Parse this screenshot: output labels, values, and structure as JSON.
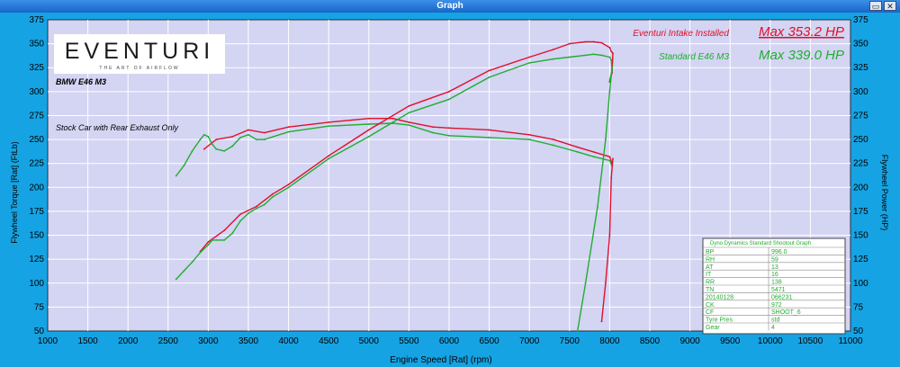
{
  "window": {
    "title": "Graph",
    "restore_icon": "restore-window-icon",
    "close_icon": "close-window-icon",
    "restore_glyph": "▭",
    "close_glyph": "✕"
  },
  "chart_data": {
    "type": "line",
    "xlabel": "Engine Speed [Rat] (rpm)",
    "ylabel_left": "Flywheel Torque [Rat] (FtLb)",
    "ylabel_right": "Flywheel Power (HP)",
    "xlim": [
      1000,
      11000
    ],
    "ylim": [
      50,
      375
    ],
    "x_ticks": [
      "1000",
      "1500",
      "2000",
      "2500",
      "3000",
      "3500",
      "4000",
      "4500",
      "5000",
      "5500",
      "6000",
      "6500",
      "7000",
      "7500",
      "8000",
      "8500",
      "9000",
      "9500",
      "10000",
      "10500",
      "11000"
    ],
    "y_ticks": [
      "50",
      "75",
      "100",
      "125",
      "150",
      "175",
      "200",
      "225",
      "250",
      "275",
      "300",
      "325",
      "350",
      "375"
    ],
    "grid": true,
    "plot_background": "#d4d4f3",
    "logo": {
      "text": "EVENTURI",
      "tagline": "THE ART OF AIRFLOW"
    },
    "annotations": [
      "BMW E46 M3",
      "Stock Car with Rear Exhaust Only"
    ],
    "legend": [
      {
        "label": "Eventuri Intake Installed",
        "max": "Max 353.2 HP",
        "color": "#e0102a"
      },
      {
        "label": "Standard E46 M3",
        "max": "Max 339.0 HP",
        "color": "#1fae2f"
      }
    ],
    "info_table": {
      "header": "Dyno Dynamics Standard Shootout Graph",
      "rows": [
        [
          "BP",
          "996.0"
        ],
        [
          "RH",
          "59"
        ],
        [
          "AT",
          "13"
        ],
        [
          "IT",
          "16"
        ],
        [
          "RR",
          "138"
        ],
        [
          "TN",
          "5471"
        ],
        [
          "20140128",
          "066231"
        ],
        [
          "CK",
          "972"
        ],
        [
          "CF",
          "SHOOT_6"
        ],
        [
          "Tyre Pres",
          "std"
        ],
        [
          "Gear",
          "4"
        ]
      ]
    },
    "series": [
      {
        "name": "Eventuri Intake Installed",
        "kind": "torque",
        "color": "#e0102a",
        "x": [
          2950,
          3100,
          3300,
          3500,
          3700,
          4000,
          4500,
          5000,
          5300,
          5500,
          5800,
          6000,
          6500,
          7000,
          7300,
          7600,
          7800,
          8000,
          8030
        ],
        "y": [
          240,
          250,
          253,
          260,
          257,
          263,
          268,
          272,
          272,
          268,
          263,
          262,
          260,
          255,
          250,
          242,
          237,
          232,
          225
        ]
      },
      {
        "name": "Standard E46 M3",
        "kind": "torque",
        "color": "#1fae2f",
        "x": [
          2600,
          2700,
          2800,
          2900,
          2950,
          3000,
          3050,
          3100,
          3200,
          3300,
          3400,
          3500,
          3600,
          3700,
          4000,
          4500,
          5000,
          5300,
          5500,
          5800,
          6000,
          6500,
          7000,
          7300,
          7600,
          7800,
          8000,
          8030
        ],
        "y": [
          212,
          223,
          238,
          250,
          255,
          253,
          245,
          240,
          238,
          243,
          252,
          255,
          250,
          250,
          258,
          264,
          266,
          267,
          265,
          257,
          254,
          252,
          250,
          244,
          237,
          232,
          228,
          222
        ]
      },
      {
        "name": "Eventuri Intake Installed",
        "kind": "power",
        "color": "#e0102a",
        "x": [
          2900,
          3000,
          3200,
          3400,
          3600,
          3800,
          4000,
          4500,
          5000,
          5500,
          6000,
          6500,
          7000,
          7300,
          7500,
          7700,
          7800,
          7900,
          8000,
          8020,
          8040,
          8030,
          8000
        ],
        "y": [
          133,
          143,
          155,
          172,
          180,
          193,
          203,
          233,
          260,
          285,
          300,
          322,
          336,
          344,
          350,
          352,
          352,
          351,
          346,
          342,
          340,
          320,
          310
        ]
      },
      {
        "name": "Standard E46 M3",
        "kind": "power",
        "color": "#1fae2f",
        "x": [
          2600,
          2700,
          2800,
          2900,
          3000,
          3050,
          3100,
          3200,
          3300,
          3400,
          3500,
          3600,
          3700,
          3800,
          4000,
          4500,
          5000,
          5300,
          5500,
          6000,
          6500,
          7000,
          7300,
          7500,
          7700,
          7800,
          7900,
          8000,
          8020,
          8030,
          8000
        ],
        "y": [
          104,
          113,
          122,
          132,
          140,
          145,
          145,
          145,
          152,
          165,
          173,
          178,
          182,
          190,
          200,
          230,
          253,
          268,
          278,
          292,
          315,
          330,
          334,
          336,
          338,
          339,
          338,
          336,
          333,
          322,
          312
        ]
      },
      {
        "name": "Eventuri Intake Installed",
        "kind": "rundown",
        "color": "#e0102a",
        "x": [
          8040,
          8020,
          8000,
          7950,
          7900
        ],
        "y": [
          230,
          210,
          150,
          100,
          60
        ]
      },
      {
        "name": "Standard E46 M3",
        "kind": "rundown",
        "color": "#1fae2f",
        "x": [
          8030,
          8000,
          7950,
          7850,
          7700,
          7600
        ],
        "y": [
          325,
          300,
          250,
          180,
          100,
          50
        ]
      }
    ]
  }
}
